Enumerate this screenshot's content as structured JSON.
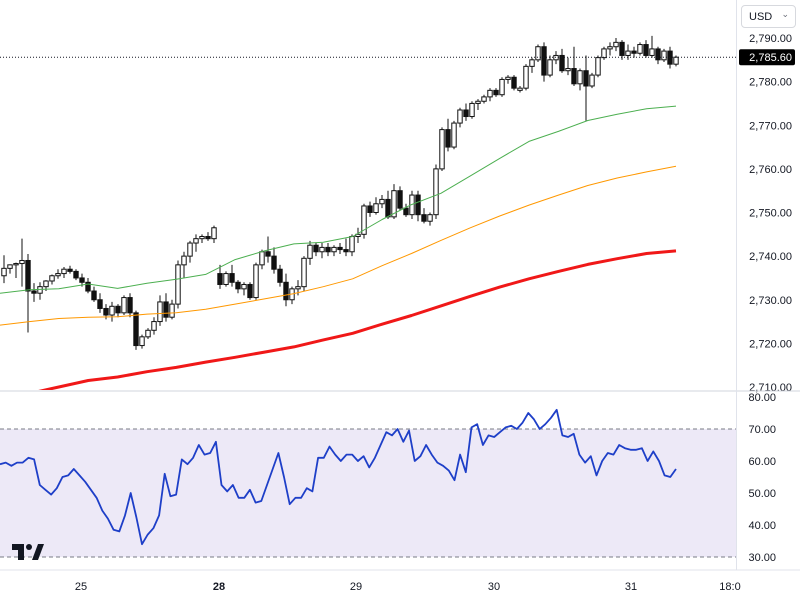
{
  "currency": {
    "label": "USD",
    "chevron_icon": "chevron-down-icon"
  },
  "logo_icon": "tradingview-logo-icon",
  "last_price_label": "2,785.60",
  "colors": {
    "ema_fast": "#4caf50",
    "ema_mid": "#ff9800",
    "ema_slow": "#f01818",
    "rsi_line": "#1e3fc8",
    "rsi_band": "#ede9f7",
    "candle": "#111111",
    "price_badge_bg": "#000000",
    "price_badge_text": "#ffffff"
  },
  "chart_data": [
    {
      "type": "candlestick",
      "title": "",
      "ylim": [
        2707,
        2797
      ],
      "price_ticks": [
        {
          "value": 2710,
          "label": "2,710.00"
        },
        {
          "value": 2720,
          "label": "2,720.00"
        },
        {
          "value": 2730,
          "label": "2,730.00"
        },
        {
          "value": 2740,
          "label": "2,740.00"
        },
        {
          "value": 2750,
          "label": "2,750.00"
        },
        {
          "value": 2760,
          "label": "2,760.00"
        },
        {
          "value": 2770,
          "label": "2,770.00"
        },
        {
          "value": 2780,
          "label": "2,780.00"
        },
        {
          "value": 2790,
          "label": "2,790.00"
        }
      ],
      "time_ticks": [
        {
          "label": "25",
          "bold": false
        },
        {
          "label": "28",
          "bold": true
        },
        {
          "label": "29",
          "bold": false
        },
        {
          "label": "30",
          "bold": false
        },
        {
          "label": "31",
          "bold": false
        },
        {
          "label": "18:0",
          "bold": false
        }
      ],
      "last_price": 2785.6,
      "candles": [
        [
          2735.5,
          2740.2,
          2733.8,
          2737.2
        ],
        [
          2737.2,
          2738.1,
          2736.0,
          2738.0
        ],
        [
          2738.0,
          2738.5,
          2735.0,
          2738.3
        ],
        [
          2738.3,
          2744.0,
          2733.0,
          2739.0
        ],
        [
          2739.0,
          2740.5,
          2722.5,
          2732.0
        ],
        [
          2732.0,
          2733.8,
          2729.5,
          2731.5
        ],
        [
          2731.5,
          2734.0,
          2730.0,
          2733.0
        ],
        [
          2733.0,
          2734.5,
          2732.0,
          2734.3
        ],
        [
          2734.3,
          2735.8,
          2733.5,
          2735.5
        ],
        [
          2735.5,
          2737.0,
          2734.8,
          2736.0
        ],
        [
          2736.0,
          2737.5,
          2735.0,
          2737.0
        ],
        [
          2737.0,
          2737.8,
          2736.0,
          2736.5
        ],
        [
          2736.5,
          2737.0,
          2734.5,
          2735.0
        ],
        [
          2735.0,
          2736.0,
          2733.0,
          2734.0
        ],
        [
          2734.0,
          2735.0,
          2731.5,
          2732.0
        ],
        [
          2732.0,
          2733.0,
          2729.5,
          2730.0
        ],
        [
          2730.0,
          2731.5,
          2727.0,
          2728.0
        ],
        [
          2728.0,
          2729.0,
          2725.5,
          2726.5
        ],
        [
          2726.5,
          2729.5,
          2725.0,
          2728.5
        ],
        [
          2728.5,
          2729.0,
          2726.0,
          2727.0
        ],
        [
          2727.0,
          2731.0,
          2726.5,
          2730.5
        ],
        [
          2730.5,
          2731.5,
          2726.0,
          2727.0
        ],
        [
          2727.0,
          2727.5,
          2718.5,
          2719.5
        ],
        [
          2719.5,
          2722.0,
          2718.8,
          2721.5
        ],
        [
          2721.5,
          2723.5,
          2721.0,
          2723.0
        ],
        [
          2723.0,
          2726.0,
          2722.0,
          2725.0
        ],
        [
          2725.0,
          2731.0,
          2724.0,
          2729.5
        ],
        [
          2729.5,
          2731.5,
          2725.0,
          2726.0
        ],
        [
          2726.0,
          2730.0,
          2725.5,
          2729.0
        ],
        [
          2729.0,
          2739.0,
          2728.0,
          2738.0
        ],
        [
          2738.0,
          2741.0,
          2735.0,
          2740.0
        ],
        [
          2740.0,
          2743.5,
          2738.5,
          2743.0
        ],
        [
          2743.0,
          2745.0,
          2741.0,
          2744.0
        ],
        [
          2744.0,
          2745.0,
          2743.0,
          2744.5
        ],
        [
          2744.5,
          2745.5,
          2743.5,
          2744.0
        ],
        [
          2744.0,
          2747.0,
          2743.0,
          2746.5
        ],
        [
          2736.0,
          2738.0,
          2732.5,
          2733.5
        ],
        [
          2733.5,
          2736.5,
          2733.0,
          2736.0
        ],
        [
          2736.0,
          2738.0,
          2733.0,
          2734.0
        ],
        [
          2734.0,
          2734.5,
          2731.5,
          2732.5
        ],
        [
          2732.5,
          2734.0,
          2731.0,
          2733.5
        ],
        [
          2733.5,
          2734.0,
          2730.0,
          2730.5
        ],
        [
          2730.5,
          2738.5,
          2730.0,
          2738.0
        ],
        [
          2738.0,
          2741.5,
          2737.0,
          2741.0
        ],
        [
          2741.0,
          2744.5,
          2738.5,
          2740.0
        ],
        [
          2740.0,
          2742.0,
          2736.0,
          2737.0
        ],
        [
          2737.0,
          2738.0,
          2733.0,
          2734.0
        ],
        [
          2734.0,
          2736.0,
          2728.5,
          2730.0
        ],
        [
          2730.0,
          2733.0,
          2729.0,
          2732.5
        ],
        [
          2732.5,
          2734.5,
          2731.0,
          2733.0
        ],
        [
          2733.0,
          2740.0,
          2732.0,
          2739.5
        ],
        [
          2739.5,
          2743.5,
          2738.0,
          2742.5
        ],
        [
          2742.5,
          2743.0,
          2740.0,
          2741.0
        ],
        [
          2741.0,
          2743.0,
          2739.5,
          2742.0
        ],
        [
          2742.0,
          2743.0,
          2740.0,
          2741.0
        ],
        [
          2741.0,
          2742.5,
          2740.0,
          2742.0
        ],
        [
          2742.0,
          2743.0,
          2740.5,
          2741.5
        ],
        [
          2741.5,
          2744.0,
          2740.0,
          2741.0
        ],
        [
          2741.0,
          2745.0,
          2740.0,
          2744.5
        ],
        [
          2744.5,
          2746.5,
          2743.0,
          2745.0
        ],
        [
          2745.0,
          2752.0,
          2744.0,
          2751.5
        ],
        [
          2751.5,
          2752.5,
          2749.0,
          2750.0
        ],
        [
          2750.0,
          2753.5,
          2749.5,
          2752.0
        ],
        [
          2752.0,
          2754.0,
          2751.0,
          2753.0
        ],
        [
          2753.0,
          2755.0,
          2748.5,
          2749.0
        ],
        [
          2749.0,
          2756.5,
          2748.5,
          2755.0
        ],
        [
          2755.0,
          2756.0,
          2750.5,
          2751.0
        ],
        [
          2751.0,
          2752.0,
          2749.0,
          2749.5
        ],
        [
          2749.5,
          2755.0,
          2748.5,
          2754.0
        ],
        [
          2754.0,
          2755.0,
          2748.0,
          2749.5
        ],
        [
          2749.5,
          2751.0,
          2747.5,
          2748.0
        ],
        [
          2748.0,
          2750.0,
          2747.0,
          2749.5
        ],
        [
          2749.5,
          2761.0,
          2748.5,
          2760.0
        ],
        [
          2760.0,
          2769.5,
          2759.5,
          2769.0
        ],
        [
          2769.0,
          2771.5,
          2764.0,
          2765.0
        ],
        [
          2765.0,
          2771.0,
          2764.5,
          2770.5
        ],
        [
          2770.5,
          2774.0,
          2769.5,
          2773.5
        ],
        [
          2773.5,
          2775.0,
          2771.0,
          2772.0
        ],
        [
          2772.0,
          2775.5,
          2771.5,
          2775.0
        ],
        [
          2775.0,
          2776.0,
          2773.5,
          2775.5
        ],
        [
          2775.5,
          2777.0,
          2775.0,
          2776.5
        ],
        [
          2776.5,
          2778.5,
          2775.5,
          2778.0
        ],
        [
          2778.0,
          2778.5,
          2776.5,
          2777.0
        ],
        [
          2777.0,
          2781.0,
          2776.5,
          2780.5
        ],
        [
          2780.5,
          2781.5,
          2779.5,
          2781.0
        ],
        [
          2781.0,
          2781.5,
          2778.0,
          2778.5
        ],
        [
          2778.0,
          2779.0,
          2777.5,
          2778.5
        ],
        [
          2778.5,
          2784.0,
          2778.0,
          2783.5
        ],
        [
          2783.5,
          2785.5,
          2782.0,
          2785.0
        ],
        [
          2785.0,
          2788.5,
          2784.5,
          2788.0
        ],
        [
          2788.0,
          2789.0,
          2780.0,
          2781.5
        ],
        [
          2781.5,
          2786.0,
          2781.0,
          2785.0
        ],
        [
          2785.0,
          2787.0,
          2784.0,
          2786.0
        ],
        [
          2786.0,
          2787.5,
          2782.0,
          2782.5
        ],
        [
          2782.5,
          2785.5,
          2781.5,
          2783.0
        ],
        [
          2783.0,
          2788.0,
          2779.0,
          2779.5
        ],
        [
          2779.5,
          2783.0,
          2778.0,
          2782.5
        ],
        [
          2782.5,
          2786.0,
          2771.0,
          2779.0
        ],
        [
          2779.0,
          2782.0,
          2778.5,
          2781.5
        ],
        [
          2781.5,
          2786.0,
          2781.0,
          2785.5
        ],
        [
          2785.5,
          2788.0,
          2785.0,
          2787.5
        ],
        [
          2787.5,
          2789.0,
          2786.0,
          2788.0
        ],
        [
          2788.0,
          2790.0,
          2787.0,
          2789.0
        ],
        [
          2789.0,
          2789.5,
          2785.0,
          2786.0
        ],
        [
          2786.0,
          2788.5,
          2785.0,
          2787.0
        ],
        [
          2787.0,
          2788.0,
          2785.5,
          2786.5
        ],
        [
          2786.5,
          2789.0,
          2786.0,
          2788.5
        ],
        [
          2788.5,
          2789.5,
          2785.5,
          2786.0
        ],
        [
          2786.0,
          2790.5,
          2785.5,
          2787.5
        ],
        [
          2787.5,
          2788.0,
          2784.0,
          2785.0
        ],
        [
          2785.0,
          2787.5,
          2784.5,
          2787.0
        ],
        [
          2787.0,
          2788.0,
          2783.0,
          2784.0
        ],
        [
          2784.0,
          2786.0,
          2783.5,
          2785.6
        ]
      ],
      "ema_fast": [
        2731.5,
        2732.3,
        2732.5,
        2733.6,
        2732.6,
        2733.8,
        2734.7,
        2735.8,
        2739.2,
        2741.2,
        2742.8,
        2743.2,
        2744.5,
        2748.4,
        2751.8,
        2754.4,
        2758.4,
        2762.4,
        2766.3,
        2768.6,
        2771.1,
        2772.5,
        2773.8,
        2774.4
      ],
      "ema_mid": [
        2724.2,
        2725.0,
        2725.7,
        2726.0,
        2726.1,
        2726.7,
        2727.0,
        2727.8,
        2729.0,
        2730.2,
        2731.4,
        2733.0,
        2734.8,
        2737.8,
        2740.6,
        2743.6,
        2746.5,
        2749.2,
        2751.7,
        2754.0,
        2756.2,
        2757.9,
        2759.3,
        2760.6
      ],
      "ema_slow": [
        2707.0,
        2708.5,
        2710.0,
        2711.5,
        2712.3,
        2713.5,
        2714.5,
        2715.7,
        2716.8,
        2718.0,
        2719.2,
        2720.8,
        2722.3,
        2724.4,
        2726.4,
        2728.6,
        2730.8,
        2732.9,
        2734.8,
        2736.5,
        2738.1,
        2739.4,
        2740.6,
        2741.2
      ]
    },
    {
      "type": "line",
      "title": "",
      "ylim": [
        30,
        80
      ],
      "band": [
        30,
        70
      ],
      "ticks": [
        {
          "value": 30,
          "label": "30.00"
        },
        {
          "value": 40,
          "label": "40.00"
        },
        {
          "value": 50,
          "label": "50.00"
        },
        {
          "value": 60,
          "label": "60.00"
        },
        {
          "value": 70,
          "label": "70.00"
        },
        {
          "value": 80,
          "label": "80.00"
        }
      ],
      "series": [
        {
          "values": [
            59.0,
            59.5,
            58.5,
            59.5,
            59.5,
            61.0,
            60.5,
            52.5,
            51.0,
            49.5,
            51.5,
            55.0,
            55.5,
            57.5,
            55.5,
            53.5,
            51.0,
            48.5,
            44.5,
            42.0,
            38.5,
            38.0,
            43.0,
            50.0,
            42.5,
            34.0,
            37.0,
            39.0,
            43.0,
            56.0,
            49.0,
            49.5,
            60.5,
            59.0,
            61.0,
            65.0,
            62.0,
            62.5,
            66.0,
            52.5,
            50.5,
            52.5,
            48.5,
            48.5,
            51.0,
            47.0,
            47.5,
            52.5,
            57.5,
            62.5,
            55.0,
            46.5,
            48.5,
            48.5,
            51.5,
            50.5,
            61.0,
            61.0,
            64.5,
            62.0,
            60.0,
            62.0,
            62.0,
            60.0,
            61.5,
            58.0,
            61.0,
            65.0,
            69.0,
            68.0,
            70.0,
            66.0,
            69.5,
            60.0,
            61.5,
            65.0,
            62.0,
            59.5,
            58.5,
            57.0,
            54.0,
            62.0,
            56.5,
            70.5,
            71.5,
            65.0,
            68.0,
            67.5,
            69.0,
            70.5,
            71.0,
            70.0,
            72.0,
            75.0,
            73.0,
            70.0,
            71.5,
            73.5,
            76.0,
            68.0,
            67.5,
            68.5,
            62.0,
            59.5,
            61.5,
            55.5,
            60.0,
            62.5,
            62.0,
            65.0,
            64.0,
            63.5,
            63.5,
            64.0,
            60.0,
            63.0,
            60.0,
            55.5,
            55.0,
            57.5
          ]
        }
      ]
    }
  ]
}
